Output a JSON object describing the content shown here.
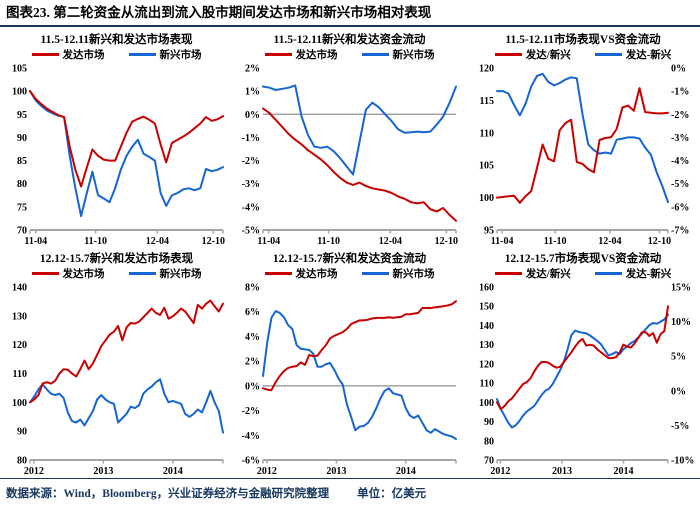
{
  "header": {
    "title": "图表23. 第二轮资金从流出到流入股市期间发达市场和新兴市场相对表现"
  },
  "footer": {
    "source": "数据来源：Wind，Bloomberg，兴业证券经济与金融研究院整理",
    "unit": "单位：亿美元"
  },
  "colors": {
    "developed_red": "#C80000",
    "emerging_blue": "#1565D2",
    "axis_gray": "#A6A6A6",
    "zero_gray": "#909090",
    "rule_navy": "#17375E"
  },
  "chart_data": [
    {
      "type": "line",
      "title": "11.5-12.11新兴和发达市场表现",
      "legend": [
        {
          "label": "发达市场",
          "color": "#C80000"
        },
        {
          "label": "新兴市场",
          "color": "#1565D2"
        }
      ],
      "left_axis": {
        "min": 70,
        "max": 105,
        "step": 5,
        "suffix": ""
      },
      "right_axis": null,
      "zero_line": false,
      "x_ticks": [
        {
          "label": "11-04",
          "pos": 0.03
        },
        {
          "label": "11-10",
          "pos": 0.34
        },
        {
          "label": "12-04",
          "pos": 0.66
        },
        {
          "label": "12-10",
          "pos": 0.95
        }
      ],
      "series": [
        {
          "name": "发达市场",
          "color": "#C80000",
          "axis": "left",
          "values": [
            100,
            98.3,
            97.2,
            96.2,
            95.5,
            94.8,
            94.4,
            88.0,
            83.0,
            79.4,
            83.5,
            87.4,
            86.0,
            85.2,
            85.0,
            85.0,
            88.0,
            91.0,
            93.4,
            94.0,
            94.5,
            93.8,
            93.0,
            88.5,
            84.6,
            88.8,
            89.5,
            90.2,
            91.0,
            92.0,
            93.0,
            94.4,
            93.6,
            93.9,
            94.6
          ]
        },
        {
          "name": "新兴市场",
          "color": "#1565D2",
          "axis": "left",
          "values": [
            100,
            98.0,
            96.8,
            95.8,
            95.2,
            94.7,
            94.4,
            86.0,
            79.0,
            73.0,
            78.0,
            82.6,
            77.5,
            76.8,
            76.0,
            79.0,
            83.0,
            86.0,
            88.0,
            89.5,
            86.5,
            85.8,
            85.0,
            78.0,
            75.2,
            77.5,
            78.0,
            78.8,
            79.0,
            78.6,
            79.0,
            83.2,
            82.7,
            83.0,
            83.6
          ]
        }
      ]
    },
    {
      "type": "line",
      "title": "11.5-12.11新兴和发达资金流动",
      "legend": [
        {
          "label": "发达市场",
          "color": "#C80000"
        },
        {
          "label": "新兴市场",
          "color": "#1565D2"
        }
      ],
      "left_axis": {
        "min": -5,
        "max": 2,
        "step": 1,
        "suffix": "%"
      },
      "right_axis": null,
      "zero_line": true,
      "x_ticks": [
        {
          "label": "11-04",
          "pos": 0.03
        },
        {
          "label": "11-10",
          "pos": 0.34
        },
        {
          "label": "12-04",
          "pos": 0.66
        },
        {
          "label": "12-10",
          "pos": 0.95
        }
      ],
      "series": [
        {
          "name": "发达市场",
          "color": "#C80000",
          "axis": "left",
          "values": [
            0.25,
            0.05,
            -0.25,
            -0.55,
            -0.85,
            -1.1,
            -1.3,
            -1.55,
            -1.75,
            -1.95,
            -2.2,
            -2.5,
            -2.75,
            -2.95,
            -3.05,
            -2.95,
            -3.1,
            -3.2,
            -3.25,
            -3.3,
            -3.4,
            -3.55,
            -3.65,
            -3.8,
            -3.85,
            -3.8,
            -4.1,
            -4.2,
            -4.05,
            -4.35,
            -4.6
          ]
        },
        {
          "name": "新兴市场",
          "color": "#1565D2",
          "axis": "left",
          "values": [
            1.2,
            1.15,
            1.05,
            1.1,
            1.15,
            1.25,
            -0.1,
            -0.9,
            -1.4,
            -1.45,
            -1.4,
            -1.6,
            -1.9,
            -2.25,
            -2.6,
            -1.2,
            0.2,
            0.5,
            0.3,
            0.0,
            -0.3,
            -0.65,
            -0.8,
            -0.78,
            -0.75,
            -0.78,
            -0.75,
            -0.45,
            -0.1,
            0.5,
            1.2
          ]
        }
      ]
    },
    {
      "type": "line",
      "title": "11.5-12.11市场表现VS资金流动",
      "legend": [
        {
          "label": "发达/新兴",
          "color": "#C80000"
        },
        {
          "label": "发达-新兴",
          "color": "#1565D2"
        }
      ],
      "left_axis": {
        "min": 95,
        "max": 120,
        "step": 5,
        "suffix": ""
      },
      "right_axis": {
        "min": -7,
        "max": 0,
        "step": 1,
        "suffix": "%"
      },
      "zero_line": false,
      "x_ticks": [
        {
          "label": "11-04",
          "pos": 0.03
        },
        {
          "label": "11-10",
          "pos": 0.34
        },
        {
          "label": "12-04",
          "pos": 0.66
        },
        {
          "label": "12-10",
          "pos": 0.95
        }
      ],
      "series": [
        {
          "name": "发达/新兴",
          "color": "#C80000",
          "axis": "left",
          "values": [
            100,
            100.1,
            100.2,
            100.3,
            99.2,
            100.2,
            101.0,
            104.5,
            108.2,
            106.0,
            105.6,
            110.4,
            111.5,
            112.0,
            105.5,
            105.2,
            104.4,
            103.9,
            108.9,
            109.2,
            109.3,
            110.6,
            113.9,
            114.2,
            113.4,
            116.9,
            113.2,
            113.1,
            113.0,
            113.0,
            113.1
          ]
        },
        {
          "name": "发达-新兴",
          "color": "#1565D2",
          "axis": "right",
          "values": [
            -1.0,
            -1.0,
            -1.1,
            -1.6,
            -2.05,
            -1.55,
            -0.8,
            -0.35,
            -0.25,
            -0.6,
            -0.75,
            -0.65,
            -0.5,
            -0.4,
            -0.45,
            -2.0,
            -3.3,
            -3.55,
            -3.7,
            -3.65,
            -3.7,
            -3.1,
            -3.05,
            -3.0,
            -3.0,
            -3.05,
            -3.45,
            -3.75,
            -4.5,
            -5.1,
            -5.8
          ]
        }
      ]
    },
    {
      "type": "line",
      "title": "12.12-15.7新兴和发达市场表现",
      "legend": [
        {
          "label": "发达市场",
          "color": "#C80000"
        },
        {
          "label": "新兴市场",
          "color": "#1565D2"
        }
      ],
      "left_axis": {
        "min": 80,
        "max": 140,
        "step": 10,
        "suffix": ""
      },
      "right_axis": null,
      "zero_line": false,
      "x_ticks": [
        {
          "label": "2012",
          "pos": 0.02
        },
        {
          "label": "2013",
          "pos": 0.38
        },
        {
          "label": "2014",
          "pos": 0.74
        }
      ],
      "series": [
        {
          "name": "发达市场",
          "color": "#C80000",
          "axis": "left",
          "values": [
            100,
            101,
            102.5,
            106.5,
            107,
            106.5,
            107.5,
            110,
            111.5,
            111.3,
            110,
            109,
            111.5,
            114.5,
            111.5,
            113.5,
            116.5,
            119.5,
            121.5,
            123.5,
            124.5,
            126.5,
            121.5,
            126,
            127.5,
            127.3,
            128,
            129.5,
            131,
            132.5,
            131,
            130.3,
            132.8,
            129,
            129.8,
            131,
            132.5,
            131.5,
            129.5,
            127.5,
            133.8,
            132.5,
            134.2,
            135.3,
            133.3,
            131.5,
            134.2
          ]
        },
        {
          "name": "新兴市场",
          "color": "#1565D2",
          "axis": "left",
          "values": [
            100,
            102,
            104.5,
            106.3,
            104.5,
            103,
            102.5,
            103,
            101.5,
            96.5,
            93.5,
            93,
            94,
            92,
            94.5,
            97,
            101,
            102.5,
            101,
            100,
            99.5,
            93,
            94.5,
            96,
            98.5,
            98,
            99,
            103,
            104.5,
            105.5,
            107,
            108,
            103,
            100,
            100.5,
            100,
            99.5,
            96,
            95,
            96,
            97.5,
            96.5,
            100,
            104,
            100,
            97,
            89.5
          ]
        }
      ]
    },
    {
      "type": "line",
      "title": "12.12-15.7新兴和发达资金流动",
      "legend": [
        {
          "label": "发达市场",
          "color": "#C80000"
        },
        {
          "label": "新兴市场",
          "color": "#1565D2"
        }
      ],
      "left_axis": {
        "min": -6,
        "max": 8,
        "step": 2,
        "suffix": "%"
      },
      "right_axis": null,
      "zero_line": true,
      "x_ticks": [
        {
          "label": "2012",
          "pos": 0.02
        },
        {
          "label": "2013",
          "pos": 0.38
        },
        {
          "label": "2014",
          "pos": 0.74
        }
      ],
      "series": [
        {
          "name": "发达市场",
          "color": "#C80000",
          "axis": "left",
          "values": [
            -0.2,
            -0.3,
            -0.35,
            0.3,
            0.8,
            1.2,
            1.45,
            1.55,
            1.6,
            1.9,
            1.7,
            2.5,
            2.4,
            2.45,
            2.9,
            3.3,
            3.85,
            4.05,
            4.2,
            4.35,
            4.6,
            5.0,
            5.15,
            5.3,
            5.3,
            5.35,
            5.45,
            5.5,
            5.5,
            5.5,
            5.55,
            5.5,
            5.55,
            5.6,
            5.8,
            5.8,
            5.85,
            5.9,
            6.3,
            6.3,
            6.3,
            6.35,
            6.4,
            6.45,
            6.5,
            6.6,
            6.85
          ]
        },
        {
          "name": "新兴市场",
          "color": "#1565D2",
          "axis": "left",
          "values": [
            0.8,
            3.5,
            5.5,
            6.05,
            5.9,
            5.55,
            4.9,
            4.6,
            3.3,
            3.0,
            2.95,
            2.9,
            2.6,
            1.55,
            1.55,
            1.75,
            1.85,
            1.3,
            0.6,
            0.1,
            -1.5,
            -2.5,
            -3.6,
            -3.3,
            -3.25,
            -3.0,
            -2.5,
            -1.8,
            -1.0,
            -0.4,
            -0.2,
            -0.6,
            -0.7,
            -0.8,
            -1.8,
            -2.4,
            -2.6,
            -2.4,
            -3.0,
            -3.6,
            -3.8,
            -3.5,
            -3.7,
            -3.9,
            -4.0,
            -4.1,
            -4.3
          ]
        }
      ]
    },
    {
      "type": "line",
      "title": "12.12-15.7市场表现VS资金流动",
      "legend": [
        {
          "label": "发达/新兴",
          "color": "#C80000"
        },
        {
          "label": "发达-新兴",
          "color": "#1565D2"
        }
      ],
      "left_axis": {
        "min": 70,
        "max": 160,
        "step": 10,
        "suffix": ""
      },
      "right_axis": {
        "min": -10,
        "max": 15,
        "step": 5,
        "suffix": "%"
      },
      "zero_line": false,
      "x_ticks": [
        {
          "label": "2012",
          "pos": 0.02
        },
        {
          "label": "2013",
          "pos": 0.38
        },
        {
          "label": "2014",
          "pos": 0.74
        }
      ],
      "series": [
        {
          "name": "发达/新兴",
          "color": "#C80000",
          "axis": "left",
          "values": [
            100,
            96.5,
            98,
            100.5,
            102,
            104.5,
            107,
            109.5,
            110.5,
            112.5,
            116,
            119,
            121,
            121,
            120.5,
            119,
            118,
            118.5,
            121,
            123.5,
            126,
            129,
            131.5,
            133,
            129.5,
            130,
            129.5,
            127.5,
            126,
            124.5,
            123,
            123,
            123.5,
            126,
            130,
            129,
            128.5,
            130.5,
            133.5,
            136.5,
            136.5,
            134.5,
            136,
            131,
            135.5,
            137,
            150
          ]
        },
        {
          "name": "发达-新兴",
          "color": "#1565D2",
          "axis": "right",
          "values": [
            -1.2,
            -2.6,
            -3.6,
            -4.6,
            -5.3,
            -5.0,
            -4.4,
            -3.6,
            -3.0,
            -2.6,
            -2.2,
            -1.4,
            -0.6,
            0.0,
            0.3,
            1.0,
            2.0,
            3.0,
            4.2,
            6.0,
            8.0,
            8.7,
            8.5,
            8.4,
            8.3,
            8.0,
            7.6,
            7.2,
            6.7,
            5.9,
            5.1,
            5.3,
            5.6,
            5.3,
            6.0,
            6.4,
            6.9,
            7.2,
            7.7,
            8.3,
            8.9,
            9.5,
            9.8,
            9.7,
            10.0,
            10.3,
            11.0
          ]
        }
      ]
    }
  ]
}
